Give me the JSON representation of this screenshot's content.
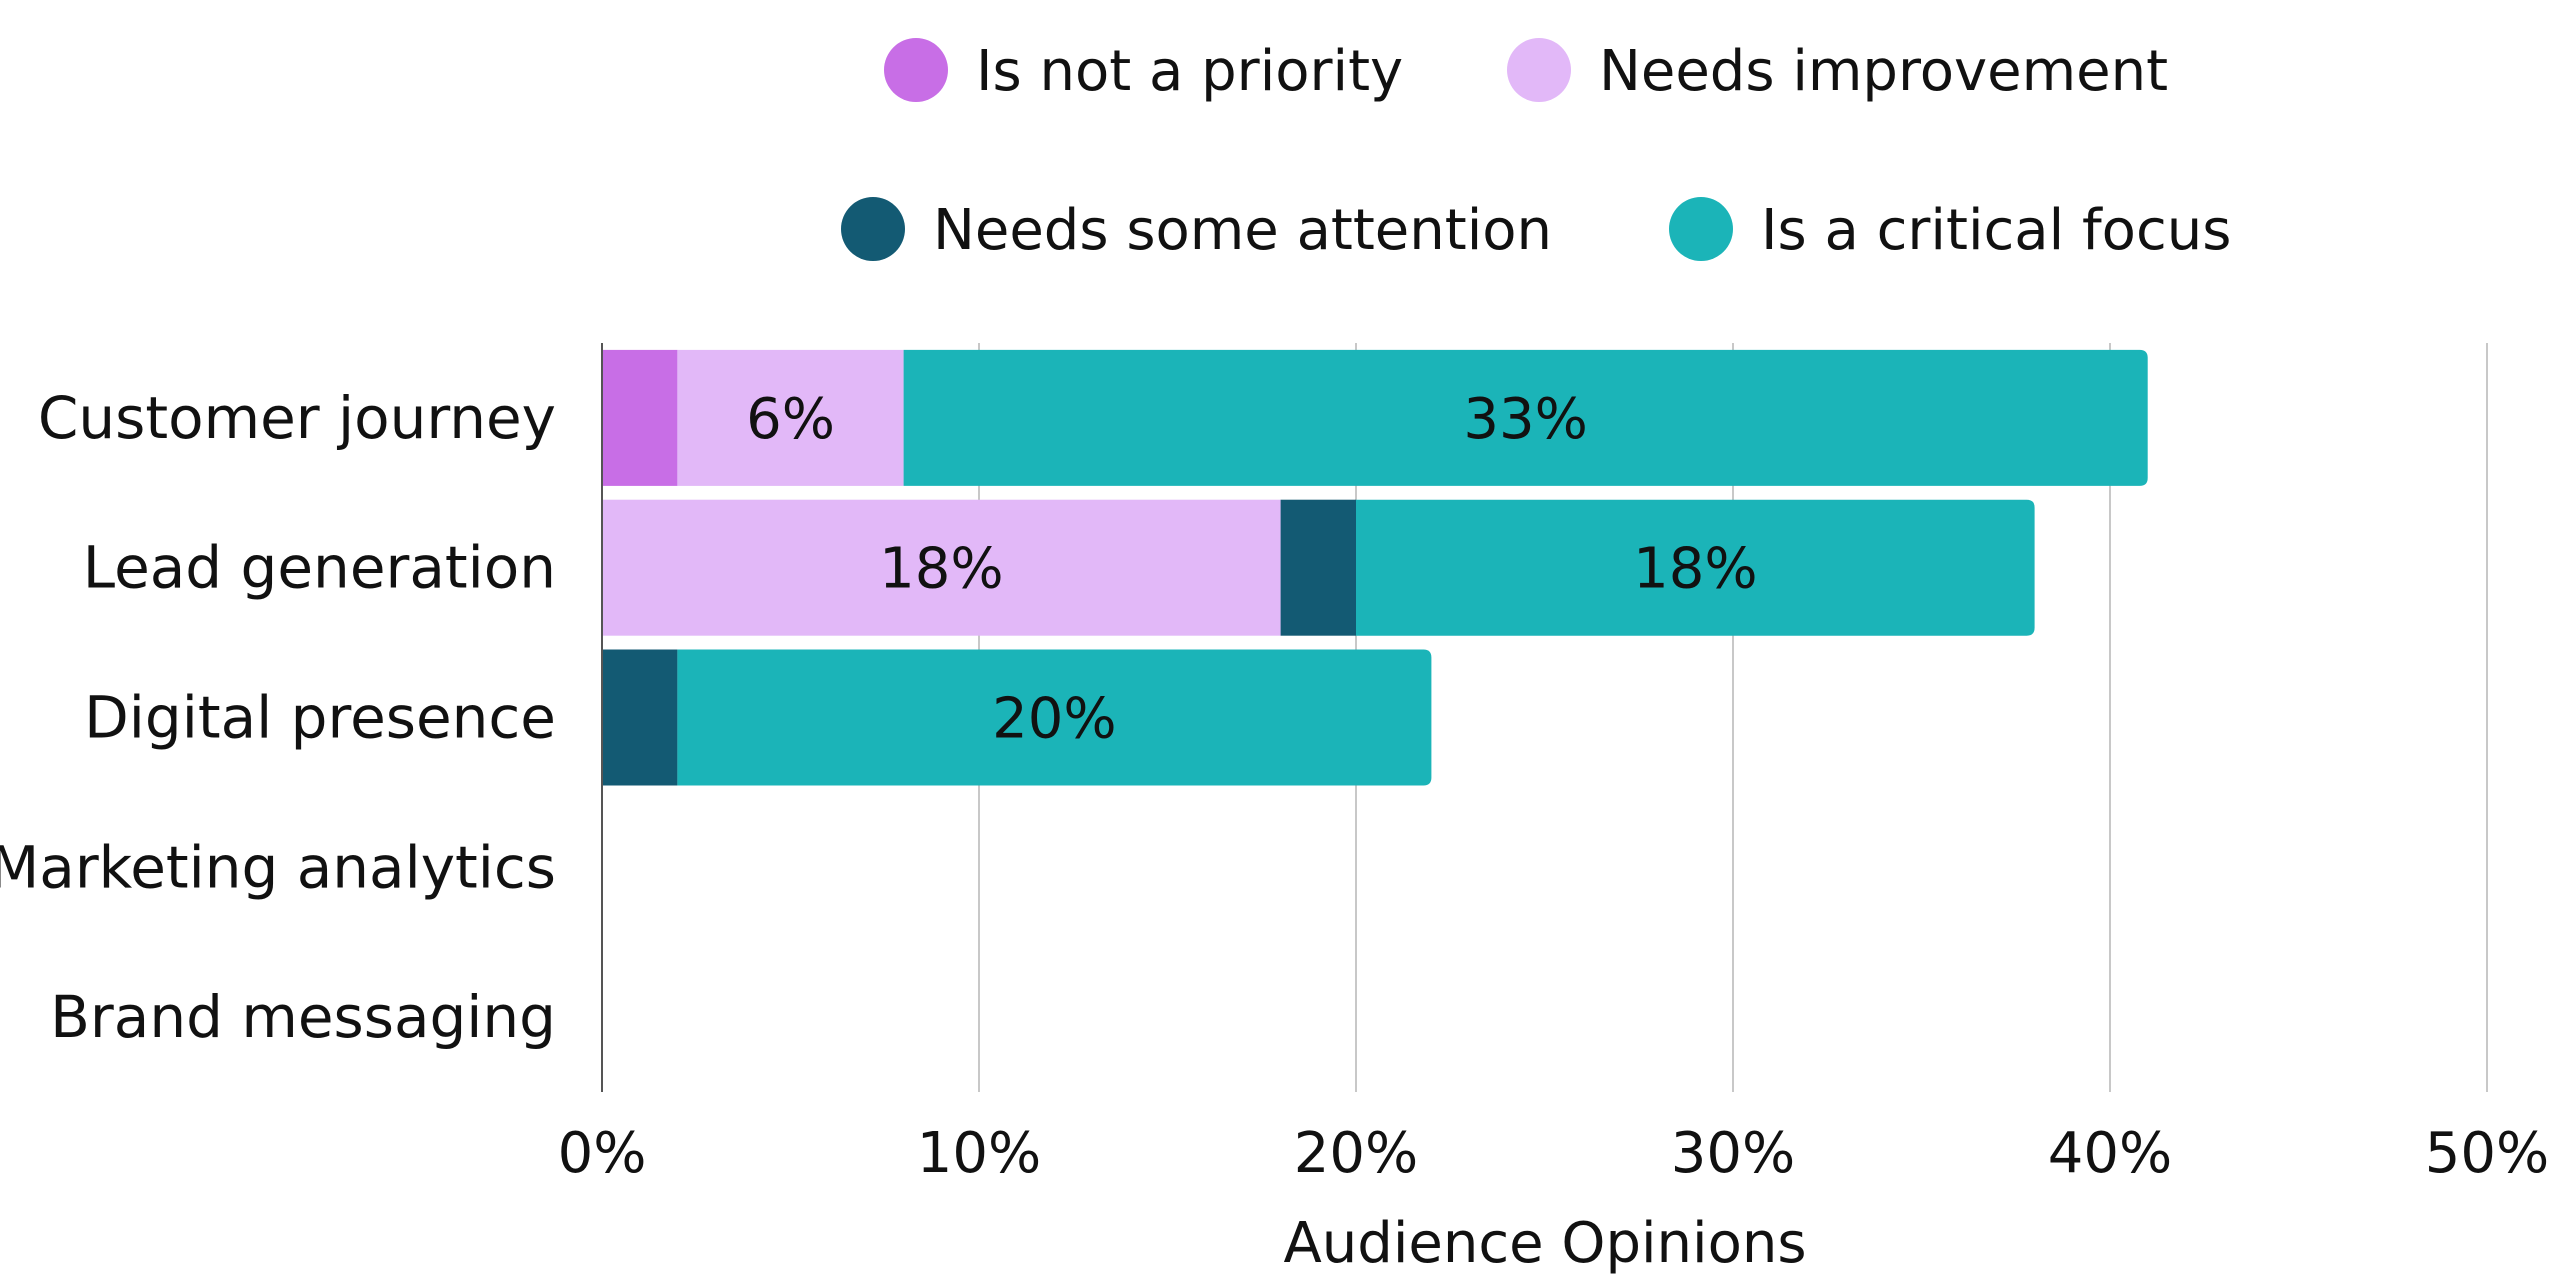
{
  "chart_data": {
    "type": "bar",
    "orientation": "horizontal",
    "stacked": true,
    "categories": [
      "Customer journey",
      "Lead generation",
      "Digital presence",
      "Marketing analytics",
      "Brand messaging"
    ],
    "series": [
      {
        "name": "Is not a priority",
        "color": "#c86ee6",
        "values": [
          2,
          0,
          0,
          0,
          0
        ],
        "labels": [
          "",
          "",
          "",
          "",
          ""
        ]
      },
      {
        "name": "Needs improvement",
        "color": "#e2b8f8",
        "values": [
          6,
          18,
          0,
          0,
          0
        ],
        "labels": [
          "6%",
          "18%",
          "",
          "",
          ""
        ]
      },
      {
        "name": "Needs some attention",
        "color": "#135a73",
        "values": [
          0,
          2,
          2,
          0,
          0
        ],
        "labels": [
          "",
          "",
          "",
          "",
          ""
        ]
      },
      {
        "name": "Is a critical focus",
        "color": "#1bb4b8",
        "values": [
          33,
          18,
          20,
          0,
          0
        ],
        "labels": [
          "33%",
          "18%",
          "20%",
          "",
          ""
        ]
      }
    ],
    "xlabel": "Audience Opinions",
    "ylabel": "",
    "xlim": [
      0,
      50
    ],
    "ticks": [
      0,
      10,
      20,
      30,
      40,
      50
    ],
    "tick_labels": [
      "0%",
      "10%",
      "20%",
      "30%",
      "40%",
      "50%"
    ],
    "grid": "vertical",
    "legend_position": "top"
  },
  "colors": {
    "grid": "#c8c8c8",
    "axis": "#555555",
    "text": "#111111"
  }
}
